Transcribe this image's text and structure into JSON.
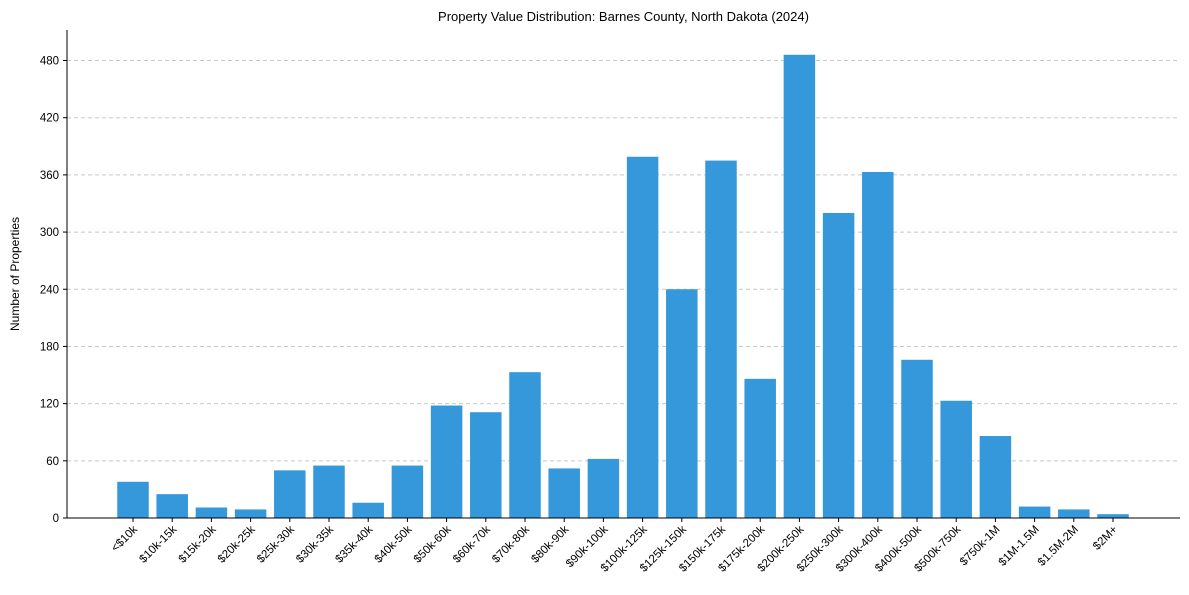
{
  "chart_data": {
    "type": "bar",
    "title": "Property Value Distribution: Barnes County, North Dakota (2024)",
    "xlabel": "",
    "ylabel": "Number of Properties",
    "ylim": [
      0,
      512
    ],
    "yticks": [
      0,
      60,
      120,
      180,
      240,
      300,
      360,
      420,
      480
    ],
    "grid": "y-dashed",
    "bar_color": "#3498db",
    "categories": [
      "<$10k",
      "$10k-15k",
      "$15k-20k",
      "$20k-25k",
      "$25k-30k",
      "$30k-35k",
      "$35k-40k",
      "$40k-50k",
      "$50k-60k",
      "$60k-70k",
      "$70k-80k",
      "$80k-90k",
      "$90k-100k",
      "$100k-125k",
      "$125k-150k",
      "$150k-175k",
      "$175k-200k",
      "$200k-250k",
      "$250k-300k",
      "$300k-400k",
      "$400k-500k",
      "$500k-750k",
      "$750k-1M",
      "$1M-1.5M",
      "$1.5M-2M",
      "$2M+"
    ],
    "values": [
      38,
      25,
      11,
      9,
      50,
      55,
      16,
      55,
      118,
      111,
      153,
      52,
      62,
      379,
      240,
      375,
      146,
      486,
      320,
      363,
      166,
      123,
      86,
      12,
      9,
      4
    ]
  }
}
